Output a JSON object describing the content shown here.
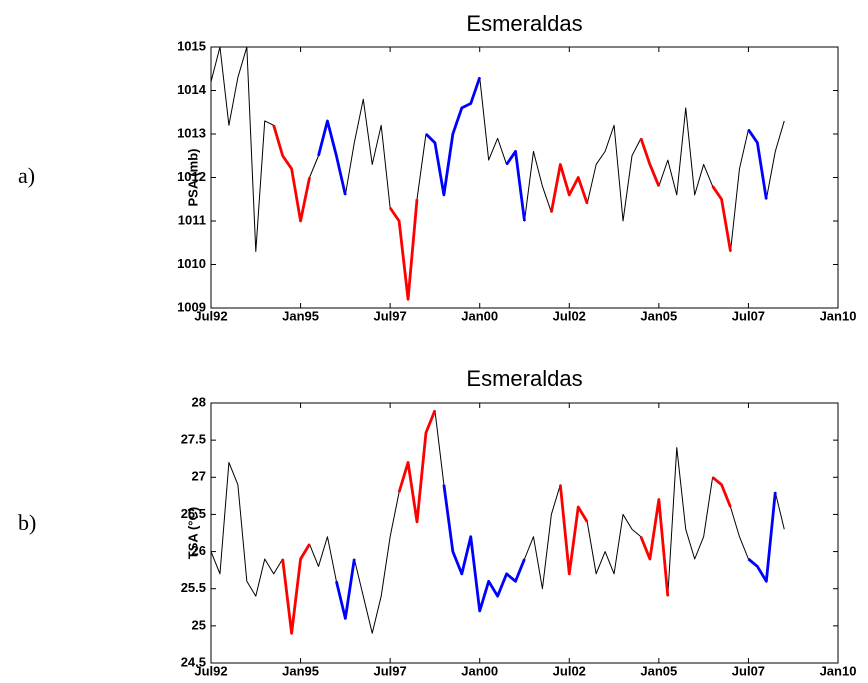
{
  "chart_data": [
    {
      "type": "line",
      "panel_label": "a)",
      "title": "Esmeraldas",
      "ylabel": "PSA (mb)",
      "x": [
        1992.5,
        1992.75,
        1993,
        1993.25,
        1993.5,
        1993.75,
        1994,
        1994.25,
        1994.5,
        1994.75,
        1995,
        1995.25,
        1995.5,
        1995.75,
        1996,
        1996.25,
        1996.5,
        1996.75,
        1997,
        1997.25,
        1997.5,
        1997.75,
        1998,
        1998.25,
        1998.5,
        1998.75,
        1999,
        1999.25,
        1999.5,
        1999.75,
        2000,
        2000.25,
        2000.5,
        2000.75,
        2001,
        2001.25,
        2001.5,
        2001.75,
        2002,
        2002.25,
        2002.5,
        2002.75,
        2003,
        2003.25,
        2003.5,
        2003.75,
        2004,
        2004.25,
        2004.5,
        2004.75,
        2005,
        2005.25,
        2005.5,
        2005.75,
        2006,
        2006.25,
        2006.5,
        2006.75,
        2007,
        2007.25,
        2007.5,
        2007.75,
        2008,
        2008.25,
        2008.5
      ],
      "series": [
        {
          "color": "#000000",
          "values": [
            1014.2,
            1015.0,
            1013.2,
            1014.3,
            1015.0,
            1010.3,
            1013.3,
            1013.2,
            1012.5,
            1012.2,
            1011.0,
            1012.0,
            1012.5,
            1013.3,
            1012.5,
            1011.6,
            1012.8,
            1013.8,
            1012.3,
            1013.2,
            1011.3,
            1011.0,
            1009.2,
            1011.5,
            1013.0,
            1012.8,
            1011.6,
            1013.0,
            1013.6,
            1013.7,
            1014.3,
            1012.4,
            1012.9,
            1012.3,
            1012.6,
            1011.0,
            1012.6,
            1011.8,
            1011.2,
            1012.3,
            1011.6,
            1012.0,
            1011.4,
            1012.3,
            1012.6,
            1013.2,
            1011.0,
            1012.5,
            1012.9,
            1012.3,
            1011.8,
            1012.4,
            1011.6,
            1013.6,
            1011.6,
            1012.3,
            1011.8,
            1011.5,
            1010.3,
            1012.2,
            1013.1,
            1012.8,
            1011.5,
            1012.6,
            1013.3
          ]
        },
        {
          "color": "#ff0000",
          "values": [
            null,
            null,
            null,
            null,
            null,
            null,
            null,
            1013.2,
            1012.5,
            1012.2,
            1011.0,
            1012.0,
            null,
            null,
            null,
            null,
            null,
            null,
            null,
            null,
            1011.3,
            1011.0,
            1009.2,
            1011.5,
            null,
            null,
            null,
            null,
            null,
            null,
            null,
            null,
            null,
            null,
            null,
            null,
            null,
            null,
            1011.2,
            1012.3,
            1011.6,
            1012.0,
            1011.4,
            null,
            null,
            null,
            null,
            null,
            1012.9,
            1012.3,
            1011.8,
            null,
            null,
            null,
            null,
            null,
            1011.8,
            1011.5,
            1010.3,
            null,
            null,
            null,
            null,
            null,
            null
          ]
        },
        {
          "color": "#0000ff",
          "values": [
            null,
            null,
            null,
            null,
            null,
            null,
            null,
            null,
            null,
            null,
            null,
            null,
            1012.5,
            1013.3,
            1012.5,
            1011.6,
            null,
            null,
            null,
            null,
            null,
            null,
            null,
            null,
            1013.0,
            1012.8,
            1011.6,
            1013.0,
            1013.6,
            1013.7,
            1014.3,
            null,
            null,
            1012.3,
            1012.6,
            1011.0,
            null,
            null,
            null,
            null,
            null,
            null,
            null,
            null,
            null,
            null,
            null,
            null,
            null,
            null,
            null,
            null,
            null,
            null,
            null,
            null,
            null,
            null,
            null,
            null,
            1013.1,
            1012.8,
            1011.5,
            null,
            null
          ]
        }
      ],
      "xlim": [
        1992.5,
        2010
      ],
      "xticks": [
        {
          "value": 1992.5,
          "label": "Jul92"
        },
        {
          "value": 1995,
          "label": "Jan95"
        },
        {
          "value": 1997.5,
          "label": "Jul97"
        },
        {
          "value": 2000,
          "label": "Jan00"
        },
        {
          "value": 2002.5,
          "label": "Jul02"
        },
        {
          "value": 2005,
          "label": "Jan05"
        },
        {
          "value": 2007.5,
          "label": "Jul07"
        },
        {
          "value": 2010,
          "label": "Jan10"
        }
      ],
      "ylim": [
        1009,
        1015
      ],
      "yticks": [
        1009,
        1010,
        1011,
        1012,
        1013,
        1014,
        1015
      ],
      "grid": false
    },
    {
      "type": "line",
      "panel_label": "b)",
      "title": "Esmeraldas",
      "ylabel": "TSA (°C)",
      "x": [
        1992.5,
        1992.75,
        1993,
        1993.25,
        1993.5,
        1993.75,
        1994,
        1994.25,
        1994.5,
        1994.75,
        1995,
        1995.25,
        1995.5,
        1995.75,
        1996,
        1996.25,
        1996.5,
        1996.75,
        1997,
        1997.25,
        1997.5,
        1997.75,
        1998,
        1998.25,
        1998.5,
        1998.75,
        1999,
        1999.25,
        1999.5,
        1999.75,
        2000,
        2000.25,
        2000.5,
        2000.75,
        2001,
        2001.25,
        2001.5,
        2001.75,
        2002,
        2002.25,
        2002.5,
        2002.75,
        2003,
        2003.25,
        2003.5,
        2003.75,
        2004,
        2004.25,
        2004.5,
        2004.75,
        2005,
        2005.25,
        2005.5,
        2005.75,
        2006,
        2006.25,
        2006.5,
        2006.75,
        2007,
        2007.25,
        2007.5,
        2007.75,
        2008,
        2008.25,
        2008.5
      ],
      "series": [
        {
          "color": "#000000",
          "values": [
            26.0,
            25.7,
            27.2,
            26.9,
            25.6,
            25.4,
            25.9,
            25.7,
            25.9,
            24.9,
            25.9,
            26.1,
            25.8,
            26.2,
            25.6,
            25.1,
            25.9,
            25.4,
            24.9,
            25.4,
            26.2,
            26.8,
            27.2,
            26.4,
            27.6,
            27.9,
            26.9,
            26.0,
            25.7,
            26.2,
            25.2,
            25.6,
            25.4,
            25.7,
            25.6,
            25.9,
            26.2,
            25.5,
            26.5,
            26.9,
            25.7,
            26.6,
            26.4,
            25.7,
            26.0,
            25.7,
            26.5,
            26.3,
            26.2,
            25.9,
            26.7,
            25.4,
            27.4,
            26.3,
            25.9,
            26.2,
            27.0,
            26.9,
            26.6,
            26.2,
            25.9,
            25.8,
            25.6,
            26.8,
            26.3
          ]
        },
        {
          "color": "#ff0000",
          "values": [
            null,
            null,
            null,
            null,
            null,
            null,
            null,
            null,
            25.9,
            24.9,
            25.9,
            26.1,
            null,
            null,
            null,
            null,
            null,
            null,
            null,
            null,
            null,
            26.8,
            27.2,
            26.4,
            27.6,
            27.9,
            null,
            null,
            null,
            null,
            null,
            null,
            null,
            null,
            null,
            null,
            null,
            null,
            null,
            26.9,
            25.7,
            26.6,
            26.4,
            null,
            null,
            null,
            null,
            null,
            26.2,
            25.9,
            26.7,
            25.4,
            null,
            null,
            null,
            null,
            27.0,
            26.9,
            26.6,
            null,
            null,
            null,
            null,
            null,
            null
          ]
        },
        {
          "color": "#0000ff",
          "values": [
            null,
            null,
            null,
            null,
            null,
            null,
            null,
            null,
            null,
            null,
            null,
            null,
            null,
            null,
            25.6,
            25.1,
            25.9,
            null,
            null,
            null,
            null,
            null,
            null,
            null,
            null,
            null,
            26.9,
            26.0,
            25.7,
            26.2,
            25.2,
            25.6,
            25.4,
            25.7,
            25.6,
            25.9,
            null,
            null,
            null,
            null,
            null,
            null,
            null,
            null,
            null,
            null,
            null,
            null,
            null,
            null,
            null,
            null,
            null,
            null,
            null,
            null,
            null,
            null,
            null,
            null,
            25.9,
            25.8,
            25.6,
            26.8,
            null
          ]
        }
      ],
      "xlim": [
        1992.5,
        2010
      ],
      "xticks": [
        {
          "value": 1992.5,
          "label": "Jul92"
        },
        {
          "value": 1995,
          "label": "Jan95"
        },
        {
          "value": 1997.5,
          "label": "Jul97"
        },
        {
          "value": 2000,
          "label": "Jan00"
        },
        {
          "value": 2002.5,
          "label": "Jul02"
        },
        {
          "value": 2005,
          "label": "Jan05"
        },
        {
          "value": 2007.5,
          "label": "Jul07"
        },
        {
          "value": 2010,
          "label": "Jan10"
        }
      ],
      "ylim": [
        24.5,
        28
      ],
      "yticks": [
        24.5,
        25,
        25.5,
        26,
        26.5,
        27,
        27.5,
        28
      ],
      "grid": false
    }
  ]
}
